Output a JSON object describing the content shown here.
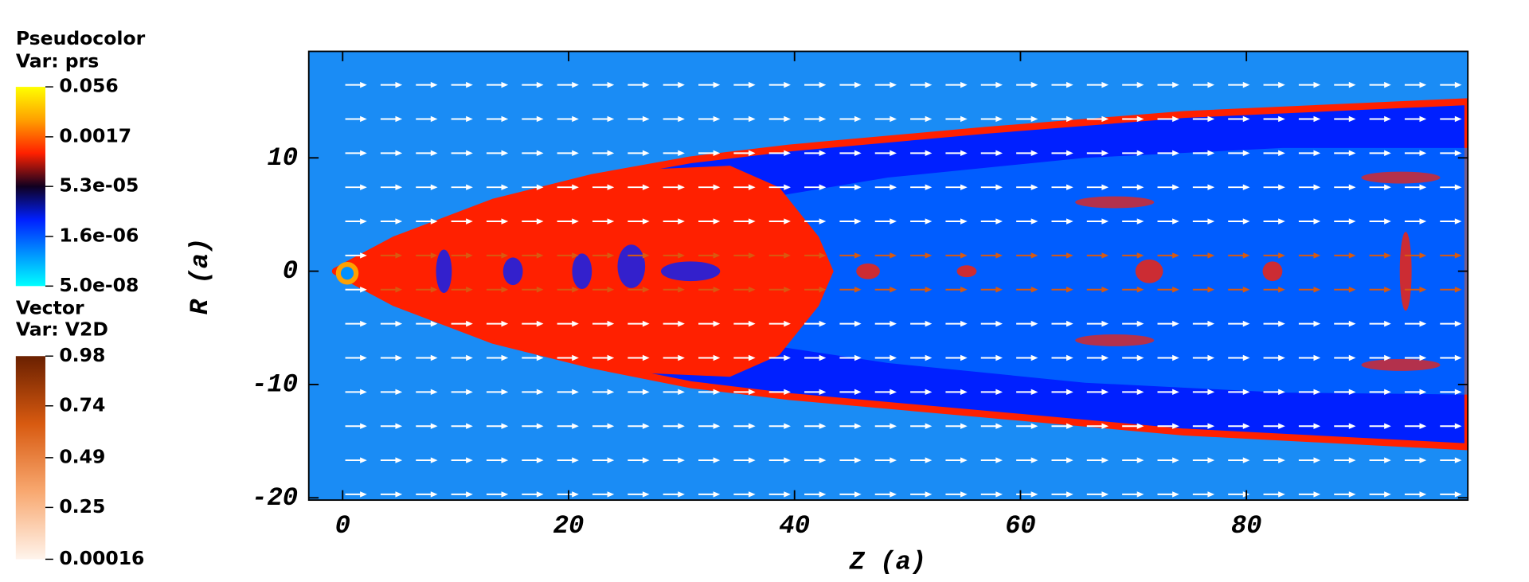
{
  "chart_data": {
    "type": "pseudocolor",
    "xlabel": "Z (a)",
    "ylabel": "R (a)",
    "xlim": [
      -3,
      99.6
    ],
    "ylim": [
      -20.2,
      19.4
    ],
    "xticks": [
      0,
      20,
      40,
      60,
      80
    ],
    "yticks": [
      -20,
      -10,
      0,
      10
    ],
    "background": "#1a8cf5",
    "legends": [
      {
        "title": "Pseudocolor",
        "variable": "Var: prs",
        "log_scale": true,
        "colors": [
          "#ffff00",
          "#ffa000",
          "#ff2000",
          "#100020",
          "#0020ff",
          "#0090ff",
          "#00ffff"
        ],
        "ticks": [
          0.056,
          0.0017,
          {
            "value": 5.3e-05,
            "label": "5.3e-05"
          },
          {
            "value": 1.6e-06,
            "label": "1.6e-06"
          },
          {
            "value": 5e-08,
            "label": "5.0e-08"
          }
        ]
      },
      {
        "title": "Vector",
        "variable": "Var: V2D",
        "colors": [
          "#6a2000",
          "#d85a10",
          "#f8a870",
          "#fff4ec"
        ],
        "ticks": [
          0.98,
          0.74,
          0.49,
          0.25,
          0.00016
        ]
      }
    ]
  }
}
